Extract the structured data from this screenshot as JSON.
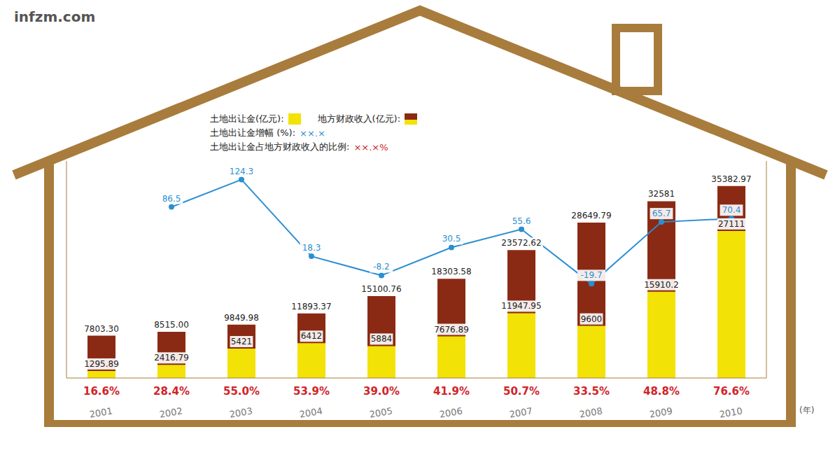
{
  "chart_data": {
    "type": "bar",
    "source": "infzm.com",
    "x_label": "(年)",
    "categories": [
      "2001",
      "2002",
      "2003",
      "2004",
      "2005",
      "2006",
      "2007",
      "2008",
      "2009",
      "2010"
    ],
    "ylim": [
      0,
      40000
    ],
    "y2lim": [
      -150,
      150
    ],
    "tick_labels": "x",
    "grid": false,
    "data_labels": true,
    "legend": "top",
    "series": [
      {
        "name": "地方财政收入(亿元):",
        "color": "#8b2a14",
        "values": [
          7803.3,
          8515,
          9849.98,
          11893.37,
          15100.76,
          18303.58,
          23572.62,
          28649.79,
          32581,
          35382.97
        ],
        "value_labels": [
          "7803.30",
          "8515.00",
          "9849.98",
          "11893.37",
          "15100.76",
          "18303.58",
          "23572.62",
          "28649.79",
          "32581",
          "35382.97"
        ]
      },
      {
        "name": "土地出让金(亿元):",
        "color": "#f2e205",
        "values": [
          1295.89,
          2416.79,
          5421,
          6412,
          5884,
          7676.89,
          11947.95,
          9600,
          15910.2,
          27111
        ],
        "value_labels": [
          "1295.89",
          "2416.79",
          "5421",
          "6412",
          "5884",
          "7676.89",
          "11947.95",
          "9600",
          "15910.2",
          "27111"
        ]
      },
      {
        "name": "土地出让金增幅 (%):",
        "type": "line",
        "axis": "y2",
        "color": "#2b8fd1",
        "values": [
          null,
          86.5,
          124.3,
          18.3,
          -8.2,
          30.5,
          55.6,
          -19.7,
          65.7,
          70.4
        ],
        "legend_sample": "××.×"
      },
      {
        "name": "土地出让金占地方财政收入的比例:",
        "type": "text",
        "color": "#d0242a",
        "values": [
          16.6,
          28.4,
          55.0,
          53.9,
          39.0,
          41.9,
          50.7,
          33.5,
          48.8,
          76.6
        ],
        "value_labels": [
          "16.6%",
          "28.4%",
          "55.0%",
          "53.9%",
          "39.0%",
          "41.9%",
          "50.7%",
          "33.5%",
          "48.8%",
          "76.6%"
        ],
        "legend_sample": "××.×%"
      }
    ]
  }
}
